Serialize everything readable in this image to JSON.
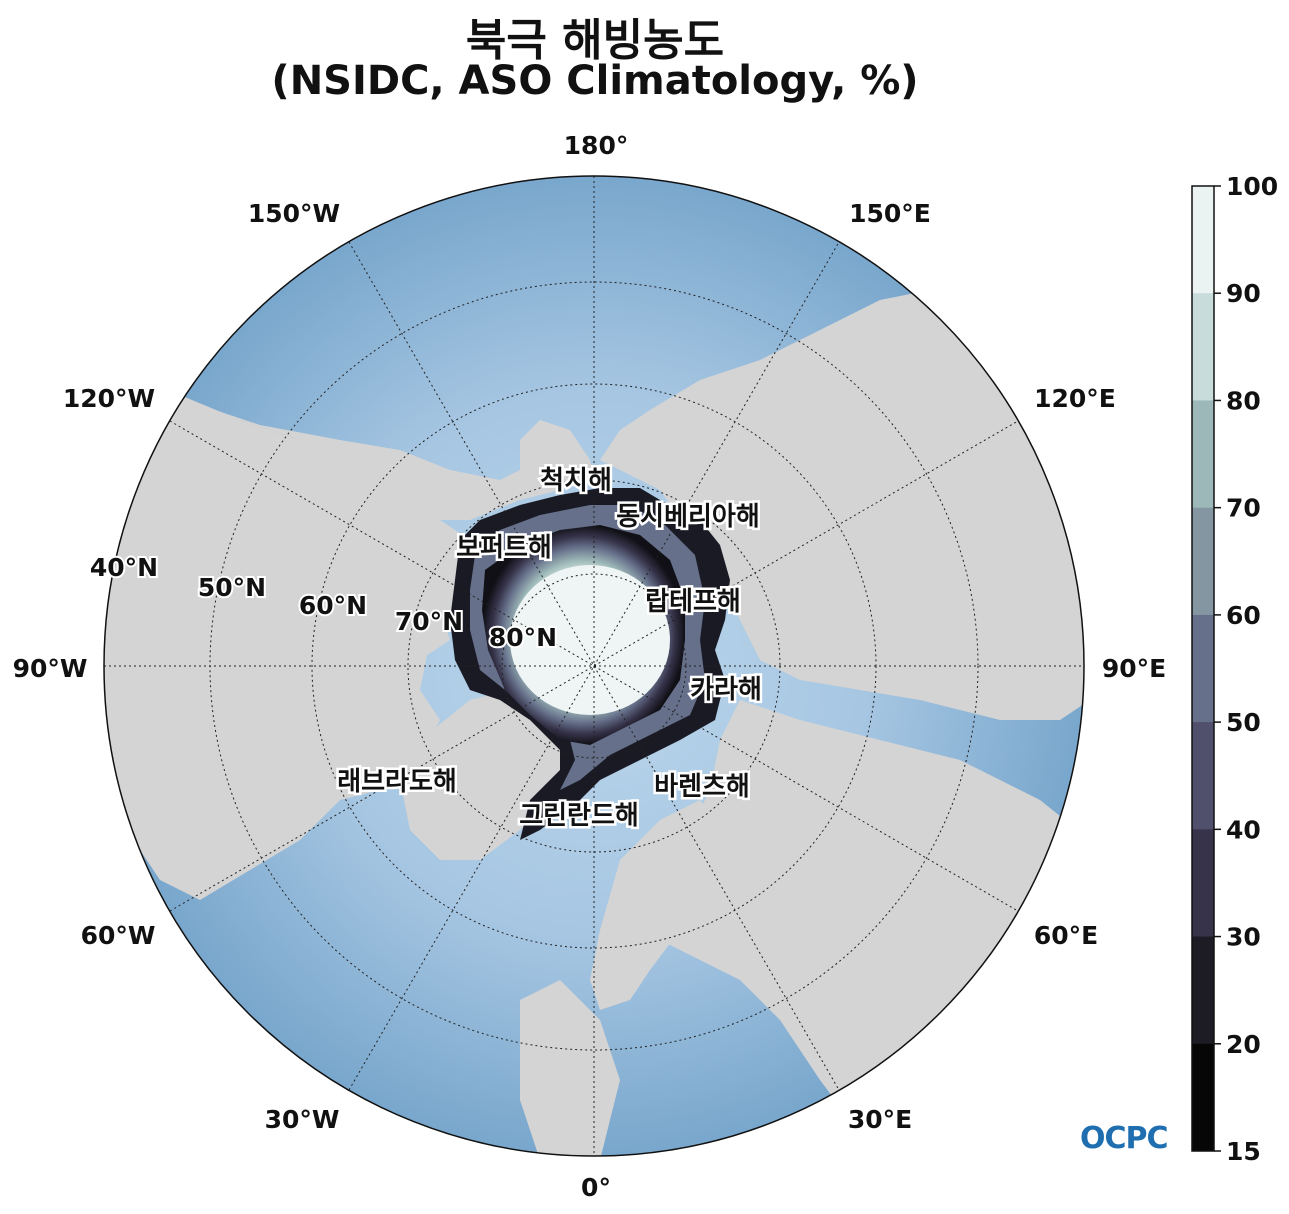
{
  "title": {
    "line1": "북극 해빙농도",
    "line2": "(NSIDC, ASO Climatology, %)"
  },
  "map": {
    "projection": "north-polar-stereographic",
    "longitude_labels": [
      "180°",
      "150°E",
      "120°E",
      "90°E",
      "60°E",
      "30°E",
      "0°",
      "30°W",
      "60°W",
      "90°W",
      "120°W",
      "150°W"
    ],
    "latitude_labels": [
      "40°N",
      "50°N",
      "60°N",
      "70°N",
      "80°N"
    ],
    "sea_labels": [
      "척치해",
      "동시베리아해",
      "보퍼트해",
      "랍테프해",
      "카라해",
      "바렌츠해",
      "그린란드해",
      "래브라도해"
    ],
    "colors": {
      "land": "#d4d4d4",
      "ocean_deep": "#78a6cc",
      "ocean_shallow": "#bcd6ec",
      "ice_edge": "#1a1a24",
      "ice_mid": "#7d8ea0",
      "ice_core": "#e6f0ef"
    }
  },
  "colorbar": {
    "ticks": [
      "100",
      "90",
      "80",
      "70",
      "60",
      "50",
      "40",
      "30",
      "20",
      "15"
    ],
    "colors": [
      "#ebf3f2",
      "#c9dcdc",
      "#9db8b8",
      "#8596a3",
      "#66708a",
      "#51506c",
      "#36334a",
      "#1d1b23",
      "#060607"
    ]
  },
  "logo": {
    "text": "OCPC"
  }
}
